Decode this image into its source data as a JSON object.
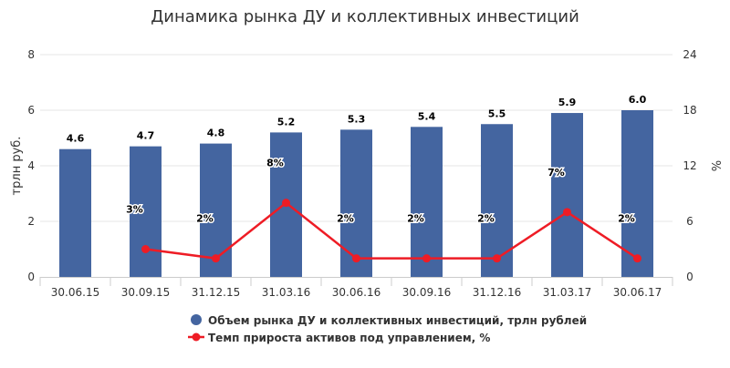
{
  "title": "Динамика рынка ДУ и коллективных инвестиций",
  "chart_data": {
    "type": "bar",
    "title": "Динамика рынка ДУ и коллективных инвестиций",
    "categories": [
      "30.06.15",
      "30.09.15",
      "31.12.15",
      "31.03.16",
      "30.06.16",
      "30.09.16",
      "31.12.16",
      "31.03.17",
      "30.06.17"
    ],
    "series": [
      {
        "name": "Объем рынка ДУ и коллективных инвестиций, трлн рублей",
        "type": "bar",
        "axis": "left",
        "color": "#4465a0",
        "values": [
          4.6,
          4.7,
          4.8,
          5.2,
          5.3,
          5.4,
          5.5,
          5.9,
          6.0
        ],
        "labels": [
          "4.6",
          "4.7",
          "4.8",
          "5.2",
          "5.3",
          "5.4",
          "5.5",
          "5.9",
          "6.0"
        ]
      },
      {
        "name": "Темп прироста активов под управлением, %",
        "type": "line",
        "axis": "right",
        "color": "#ee1c25",
        "values": [
          null,
          3,
          2,
          8,
          2,
          2,
          2,
          7,
          2
        ],
        "labels": [
          "",
          "3%",
          "2%",
          "8%",
          "2%",
          "2%",
          "2%",
          "7%",
          "2%"
        ]
      }
    ],
    "y_left": {
      "label": "трлн руб.",
      "min": 0,
      "max": 8,
      "ticks": [
        "0",
        "2",
        "4",
        "6",
        "8"
      ]
    },
    "y_right": {
      "label": "%",
      "min": 0,
      "max": 24,
      "ticks": [
        "0",
        "6",
        "12",
        "18",
        "24"
      ]
    },
    "grid": true,
    "legend_position": "bottom"
  }
}
